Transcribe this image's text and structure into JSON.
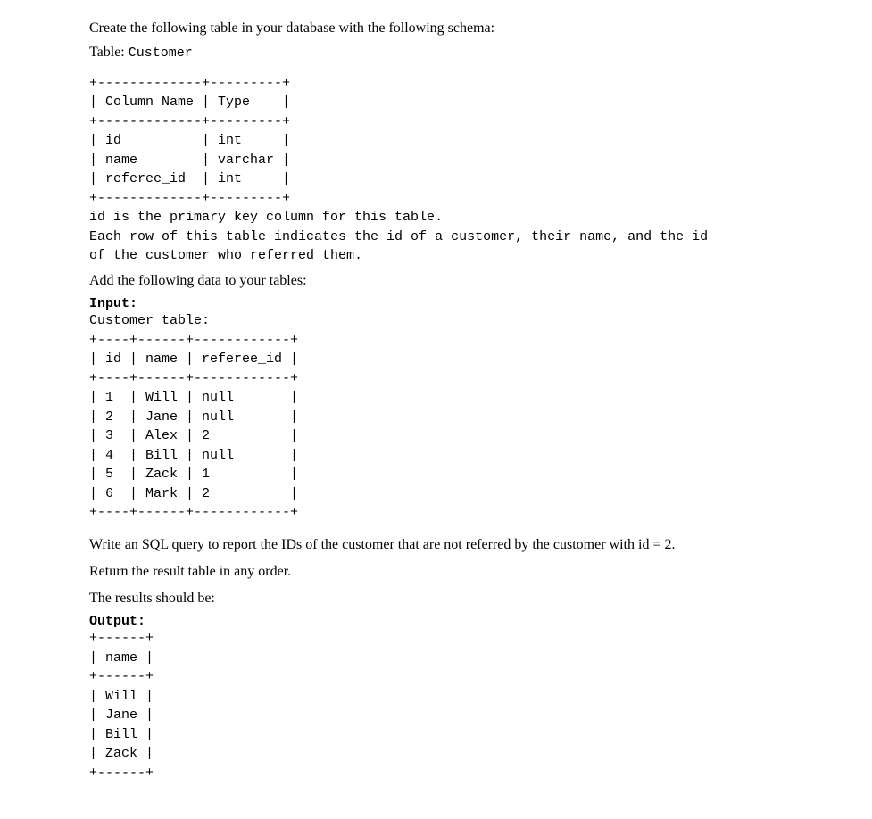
{
  "intro": {
    "line1": "Create the following table in your database with the following schema:",
    "table_label_prefix": "Table: ",
    "table_name": "Customer"
  },
  "schema": {
    "border_top": "+-------------+---------+",
    "header": "| Column Name | Type    |",
    "border_mid": "+-------------+---------+",
    "row1": "| id          | int     |",
    "row2": "| name        | varchar |",
    "row3": "| referee_id  | int     |",
    "border_bot": "+-------------+---------+",
    "note1": "id is the primary key column for this table.",
    "note2": "Each row of this table indicates the id of a customer, their name, and the id",
    "note3": "of the customer who referred them."
  },
  "data_section": {
    "heading": "Add the following data to your tables:",
    "input_label": "Input:",
    "table_label": "Customer table:",
    "border_top": "+----+------+------------+",
    "header": "| id | name | referee_id |",
    "border_mid": "+----+------+------------+",
    "row1": "| 1  | Will | null       |",
    "row2": "| 2  | Jane | null       |",
    "row3": "| 3  | Alex | 2          |",
    "row4": "| 4  | Bill | null       |",
    "row5": "| 5  | Zack | 1          |",
    "row6": "| 6  | Mark | 2          |",
    "border_bot": "+----+------+------------+"
  },
  "question": {
    "line1": "Write an SQL query to report the IDs of the customer that are not referred by the customer with id = 2.",
    "line2": "Return the result table in any order.",
    "line3": "The results should be:"
  },
  "output": {
    "label": "Output:",
    "border_top": "+------+",
    "header": "| name |",
    "border_mid": "+------+",
    "row1": "| Will |",
    "row2": "| Jane |",
    "row3": "| Bill |",
    "row4": "| Zack |",
    "border_bot": "+------+"
  }
}
